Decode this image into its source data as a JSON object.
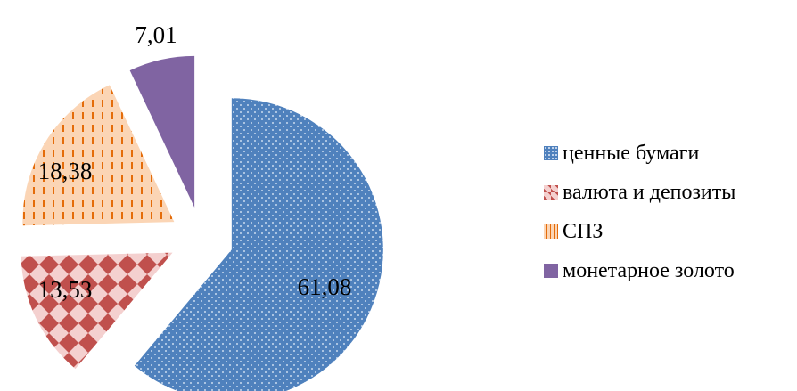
{
  "chart_data": {
    "type": "pie",
    "exploded": true,
    "legend_position": "right",
    "slices": [
      {
        "label": "ценные бумаги",
        "value": 61.08,
        "value_label": "61,08",
        "color": "#4f81bd",
        "pattern": "dots"
      },
      {
        "label": "валюта и депозиты",
        "value": 13.53,
        "value_label": "13,53",
        "color": "#c0504d",
        "pattern": "diamond-checker"
      },
      {
        "label": "СПЗ",
        "value": 18.38,
        "value_label": "18,38",
        "color": "#f79646",
        "pattern": "dashed-vertical"
      },
      {
        "label": "монетарное золото",
        "value": 7.01,
        "value_label": "7,01",
        "color": "#8064a2",
        "pattern": "solid"
      }
    ]
  }
}
